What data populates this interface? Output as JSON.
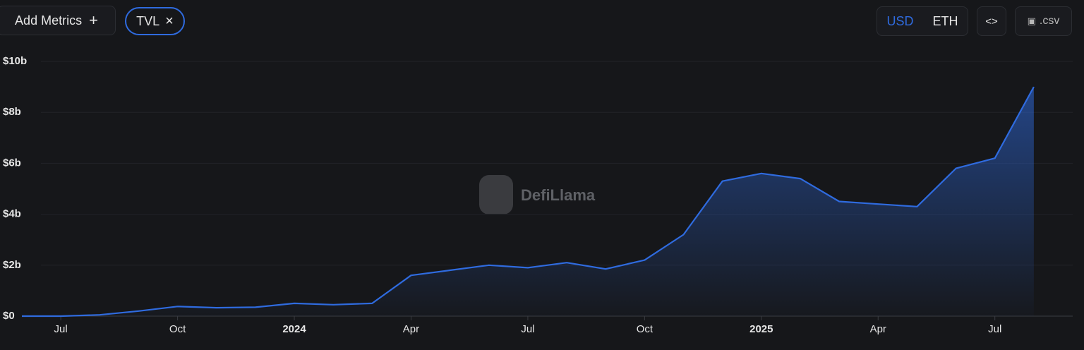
{
  "ui": {
    "add_metrics": "Add Metrics",
    "metric_chip": "TVL",
    "currency_usd": "USD",
    "currency_eth": "ETH",
    "csv": ".csv",
    "watermark": "DefiLlama"
  },
  "chart_data": {
    "type": "area",
    "color": "#2f6bdf",
    "x": [
      "2023-06",
      "2023-07",
      "2023-08",
      "2023-09",
      "2023-10",
      "2023-11",
      "2023-12",
      "2024-01",
      "2024-02",
      "2024-03",
      "2024-04",
      "2024-05",
      "2024-06",
      "2024-07",
      "2024-08",
      "2024-09",
      "2024-10",
      "2024-11",
      "2024-12",
      "2025-01",
      "2025-02",
      "2025-03",
      "2025-04",
      "2025-05",
      "2025-06",
      "2025-07",
      "2025-08"
    ],
    "values": [
      0,
      0,
      0.05,
      0.2,
      0.38,
      0.33,
      0.35,
      0.5,
      0.45,
      0.5,
      1.6,
      1.8,
      2.0,
      1.9,
      2.1,
      1.85,
      2.2,
      3.2,
      5.3,
      5.6,
      5.4,
      4.5,
      4.4,
      4.3,
      5.8,
      6.2,
      9.0
    ],
    "xlim": [
      "2023-06",
      "2025-09"
    ],
    "xticks": [
      {
        "value": "2023-07",
        "label": "Jul"
      },
      {
        "value": "2023-10",
        "label": "Oct"
      },
      {
        "value": "2024-01",
        "label": "2024"
      },
      {
        "value": "2024-04",
        "label": "Apr"
      },
      {
        "value": "2024-07",
        "label": "Jul"
      },
      {
        "value": "2024-10",
        "label": "Oct"
      },
      {
        "value": "2025-01",
        "label": "2025"
      },
      {
        "value": "2025-04",
        "label": "Apr"
      },
      {
        "value": "2025-07",
        "label": "Jul"
      }
    ],
    "ylim": [
      0,
      10
    ],
    "yticks": [
      {
        "value": 0,
        "label": "$0"
      },
      {
        "value": 2,
        "label": "$2b"
      },
      {
        "value": 4,
        "label": "$4b"
      },
      {
        "value": 6,
        "label": "$6b"
      },
      {
        "value": 8,
        "label": "$8b"
      },
      {
        "value": 10,
        "label": "$10b"
      }
    ],
    "grid": true
  }
}
